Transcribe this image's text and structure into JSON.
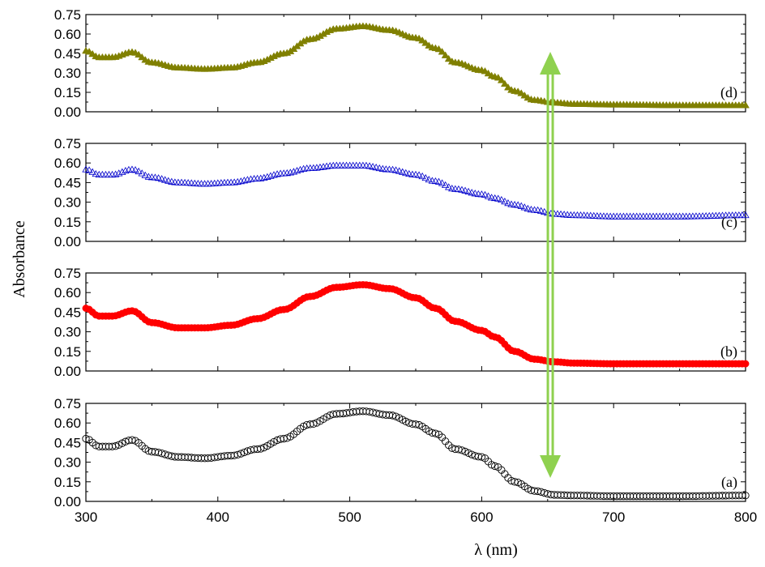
{
  "chart_data": {
    "type": "line",
    "xlabel": "λ (nm)",
    "ylabel": "Absorbance",
    "xlim": [
      300,
      800
    ],
    "x_ticks": [
      "300",
      "400",
      "500",
      "600",
      "700",
      "800"
    ],
    "ylim": [
      0,
      0.75
    ],
    "y_ticks": [
      "0.00",
      "0.15",
      "0.30",
      "0.45",
      "0.60",
      "0.75"
    ],
    "x": [
      300,
      310,
      320,
      335,
      350,
      370,
      390,
      410,
      430,
      450,
      470,
      490,
      510,
      530,
      550,
      565,
      580,
      600,
      610,
      625,
      640,
      655,
      670,
      700,
      750,
      800
    ],
    "series": [
      {
        "name": "(a)",
        "marker": "open-circle",
        "color": "#000000",
        "values": [
          0.48,
          0.42,
          0.42,
          0.47,
          0.38,
          0.34,
          0.33,
          0.35,
          0.4,
          0.48,
          0.59,
          0.67,
          0.69,
          0.66,
          0.59,
          0.52,
          0.4,
          0.34,
          0.27,
          0.15,
          0.08,
          0.05,
          0.045,
          0.04,
          0.04,
          0.045
        ]
      },
      {
        "name": "(b)",
        "marker": "filled-circle",
        "color": "#ff0000",
        "values": [
          0.48,
          0.42,
          0.42,
          0.46,
          0.37,
          0.33,
          0.33,
          0.35,
          0.4,
          0.47,
          0.57,
          0.64,
          0.66,
          0.63,
          0.56,
          0.48,
          0.38,
          0.31,
          0.26,
          0.15,
          0.09,
          0.07,
          0.06,
          0.055,
          0.055,
          0.055
        ]
      },
      {
        "name": "(c)",
        "marker": "open-triangle",
        "color": "#0000cc",
        "values": [
          0.55,
          0.51,
          0.51,
          0.55,
          0.49,
          0.45,
          0.44,
          0.45,
          0.48,
          0.52,
          0.56,
          0.58,
          0.58,
          0.55,
          0.51,
          0.46,
          0.4,
          0.36,
          0.33,
          0.28,
          0.24,
          0.21,
          0.2,
          0.19,
          0.19,
          0.2
        ]
      },
      {
        "name": "(d)",
        "marker": "filled-triangle",
        "color": "#808000",
        "values": [
          0.47,
          0.42,
          0.42,
          0.46,
          0.38,
          0.34,
          0.33,
          0.34,
          0.38,
          0.45,
          0.56,
          0.64,
          0.66,
          0.63,
          0.57,
          0.49,
          0.38,
          0.32,
          0.27,
          0.16,
          0.09,
          0.07,
          0.06,
          0.055,
          0.05,
          0.05
        ]
      }
    ],
    "annotation": {
      "type": "double-arrow",
      "color": "#8fd14f",
      "x": 652
    }
  }
}
